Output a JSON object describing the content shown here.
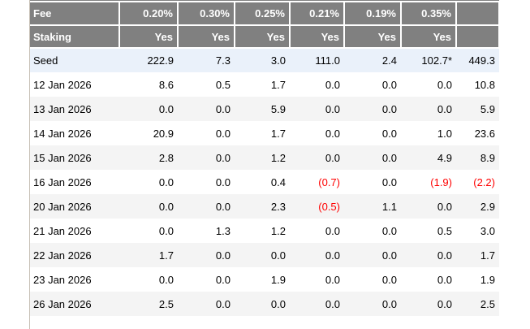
{
  "table": {
    "header_rows": [
      {
        "name": "fee",
        "label": "Fee",
        "values": [
          "0.20%",
          "0.30%",
          "0.25%",
          "0.21%",
          "0.19%",
          "0.35%",
          ""
        ]
      },
      {
        "name": "staking",
        "label": "Staking",
        "values": [
          "Yes",
          "Yes",
          "Yes",
          "Yes",
          "Yes",
          "Yes",
          ""
        ]
      }
    ],
    "rows": [
      {
        "label": "Seed",
        "highlight": true,
        "values": [
          "222.9",
          "7.3",
          "3.0",
          "111.0",
          "2.4",
          "102.7*",
          "449.3"
        ]
      },
      {
        "label": "12 Jan 2026",
        "highlight": false,
        "values": [
          "8.6",
          "0.5",
          "1.7",
          "0.0",
          "0.0",
          "0.0",
          "10.8"
        ]
      },
      {
        "label": "13 Jan 2026",
        "highlight": false,
        "values": [
          "0.0",
          "0.0",
          "5.9",
          "0.0",
          "0.0",
          "0.0",
          "5.9"
        ]
      },
      {
        "label": "14 Jan 2026",
        "highlight": false,
        "values": [
          "20.9",
          "0.0",
          "1.7",
          "0.0",
          "0.0",
          "1.0",
          "23.6"
        ]
      },
      {
        "label": "15 Jan 2026",
        "highlight": false,
        "values": [
          "2.8",
          "0.0",
          "1.2",
          "0.0",
          "0.0",
          "4.9",
          "8.9"
        ]
      },
      {
        "label": "16 Jan 2026",
        "highlight": false,
        "values": [
          "0.0",
          "0.0",
          "0.4",
          "(0.7)",
          "0.0",
          "(1.9)",
          "(2.2)"
        ]
      },
      {
        "label": "20 Jan 2026",
        "highlight": false,
        "values": [
          "0.0",
          "0.0",
          "2.3",
          "(0.5)",
          "1.1",
          "0.0",
          "2.9"
        ]
      },
      {
        "label": "21 Jan 2026",
        "highlight": false,
        "values": [
          "0.0",
          "1.3",
          "1.2",
          "0.0",
          "0.0",
          "0.5",
          "3.0"
        ]
      },
      {
        "label": "22 Jan 2026",
        "highlight": false,
        "values": [
          "1.7",
          "0.0",
          "0.0",
          "0.0",
          "0.0",
          "0.0",
          "1.7"
        ]
      },
      {
        "label": "23 Jan 2026",
        "highlight": false,
        "values": [
          "0.0",
          "0.0",
          "1.9",
          "0.0",
          "0.0",
          "0.0",
          "1.9"
        ]
      },
      {
        "label": "26 Jan 2026",
        "highlight": false,
        "values": [
          "2.5",
          "0.0",
          "0.0",
          "0.0",
          "0.0",
          "0.0",
          "2.5"
        ]
      }
    ],
    "negative_format": "parentheses"
  },
  "colors": {
    "header_bg": "#808080",
    "header_text": "#ffffff",
    "seed_row_bg": "#eaf1fa",
    "zebra_row_bg": "#f4f4f4",
    "body_text": "#000000",
    "negative_text": "#ff0000",
    "table_border": "#c6bfb5"
  }
}
